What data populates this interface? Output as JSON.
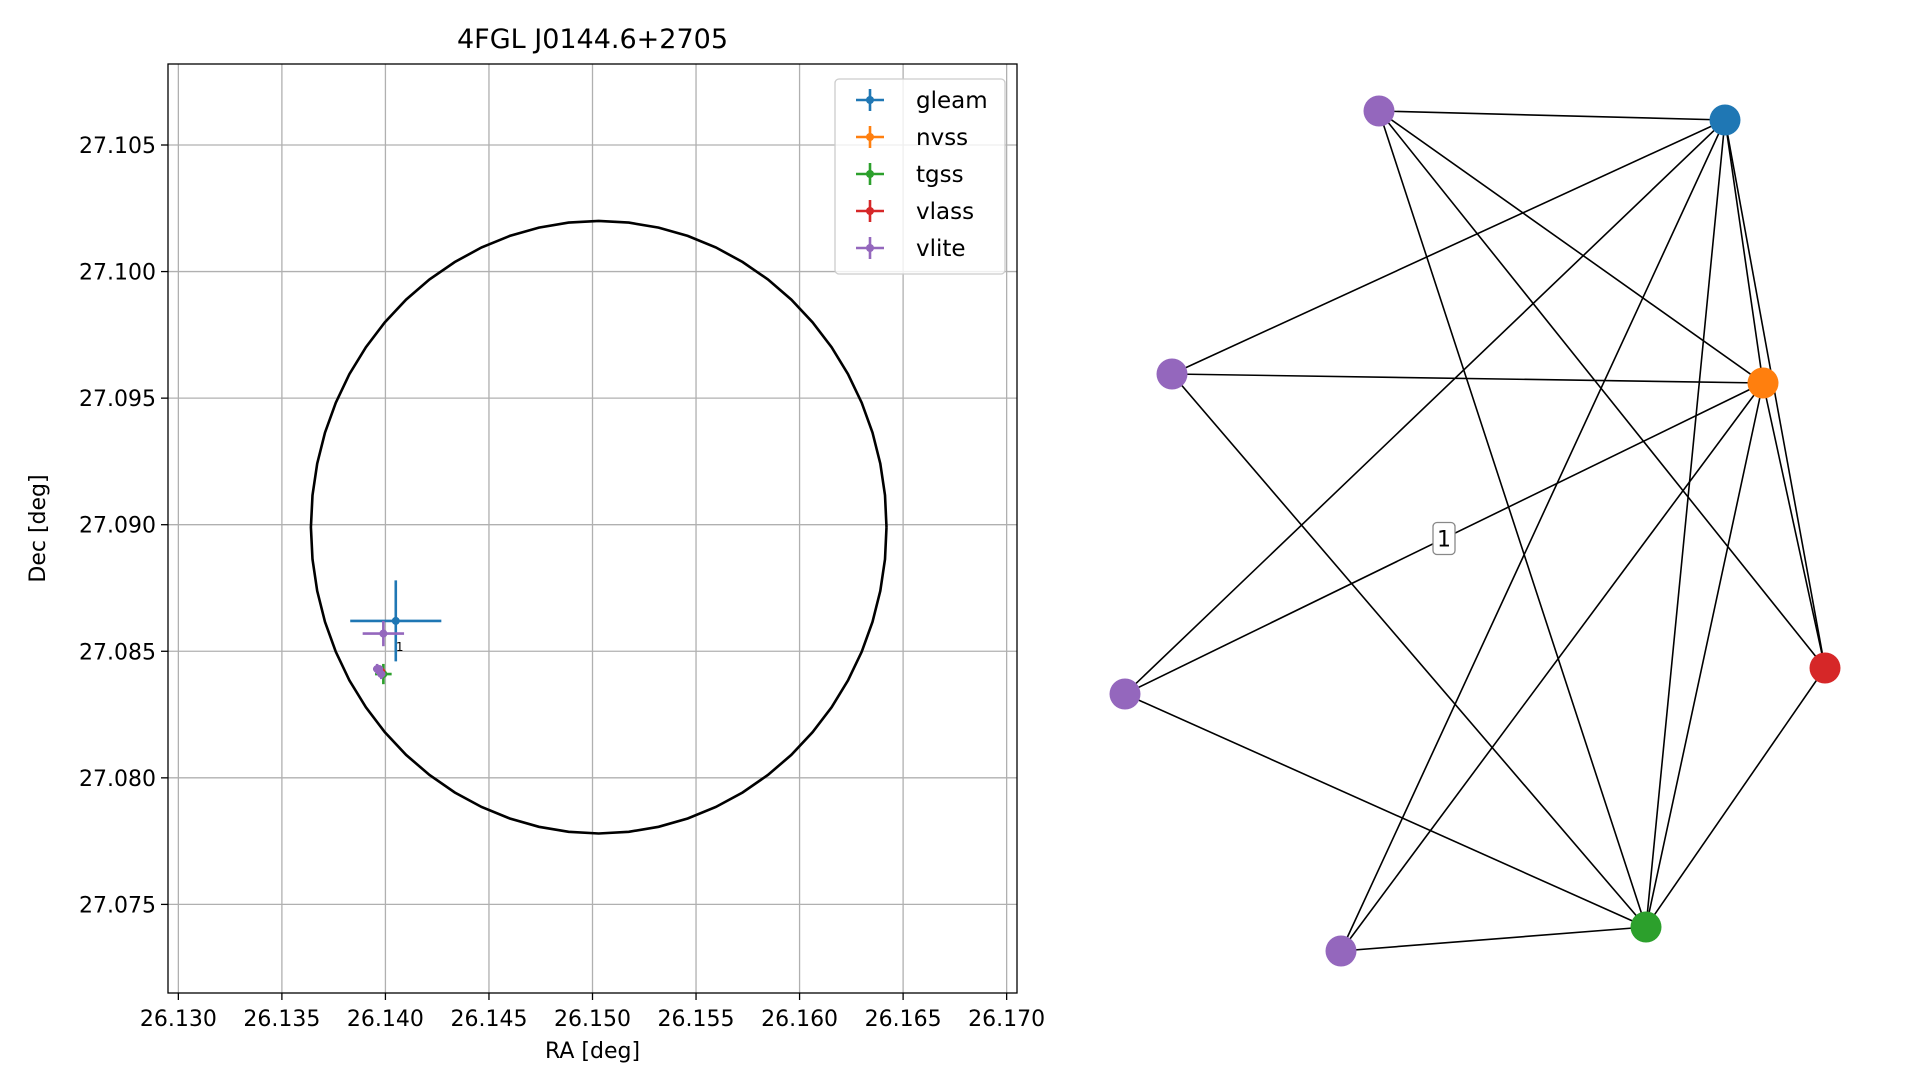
{
  "chart_data": [
    {
      "type": "scatter",
      "title": "4FGL J0144.6+2705",
      "xlabel": "RA [deg]",
      "ylabel": "Dec [deg]",
      "xlim": [
        26.1295,
        26.1705
      ],
      "ylim": [
        27.0715,
        27.1082
      ],
      "xticks": [
        "26.130",
        "26.135",
        "26.140",
        "26.145",
        "26.150",
        "26.155",
        "26.160",
        "26.165",
        "26.170"
      ],
      "yticks": [
        "27.075",
        "27.080",
        "27.085",
        "27.090",
        "27.095",
        "27.100",
        "27.105"
      ],
      "grid": true,
      "legend_position": "top-right",
      "ellipse": {
        "center": [
          26.1503,
          27.0899
        ],
        "semi_axes": [
          0.0139,
          0.0121
        ],
        "color": "#000000"
      },
      "series": [
        {
          "name": "gleam",
          "color": "#1f77b4",
          "points": [
            {
              "x": 26.1405,
              "y": 27.0862,
              "xerr": 0.0022,
              "yerr": 0.0016
            }
          ]
        },
        {
          "name": "nvss",
          "color": "#ff7f0e",
          "points": [
            {
              "x": 26.1398,
              "y": 27.0842,
              "xerr": 0.0002,
              "yerr": 0.0001
            }
          ]
        },
        {
          "name": "tgss",
          "color": "#2ca02c",
          "points": [
            {
              "x": 26.1399,
              "y": 27.0841,
              "xerr": 0.0004,
              "yerr": 0.0004
            }
          ]
        },
        {
          "name": "vlass",
          "color": "#d62728",
          "points": [
            {
              "x": 26.1398,
              "y": 27.0842,
              "xerr": 0.0001,
              "yerr": 0.0001
            }
          ]
        },
        {
          "name": "vlite",
          "color": "#9467bd",
          "points": [
            {
              "x": 26.1399,
              "y": 27.0857,
              "xerr": 0.001,
              "yerr": 0.0005
            },
            {
              "x": 26.1396,
              "y": 27.0843,
              "xerr": 0.0002,
              "yerr": 0.0002
            },
            {
              "x": 26.1398,
              "y": 27.0841,
              "xerr": 0.0002,
              "yerr": 0.0002
            },
            {
              "x": 26.1397,
              "y": 27.0843,
              "xerr": 0.0001,
              "yerr": 0.0001
            }
          ]
        }
      ],
      "annotations": [
        {
          "text": "1",
          "x": 26.1407,
          "y": 27.0852
        }
      ]
    },
    {
      "type": "graph",
      "nodes": [
        {
          "id": "n0",
          "color": "#1f77b4"
        },
        {
          "id": "n1",
          "color": "#ff7f0e"
        },
        {
          "id": "n2",
          "color": "#d62728"
        },
        {
          "id": "n3",
          "color": "#2ca02c"
        },
        {
          "id": "n4",
          "color": "#9467bd"
        },
        {
          "id": "n5",
          "color": "#9467bd"
        },
        {
          "id": "n6",
          "color": "#9467bd"
        },
        {
          "id": "n7",
          "color": "#9467bd"
        }
      ],
      "edges": [
        [
          "n7",
          "n0"
        ],
        [
          "n7",
          "n1"
        ],
        [
          "n7",
          "n2"
        ],
        [
          "n7",
          "n3"
        ],
        [
          "n6",
          "n0"
        ],
        [
          "n6",
          "n1"
        ],
        [
          "n6",
          "n3"
        ],
        [
          "n5",
          "n0"
        ],
        [
          "n5",
          "n1"
        ],
        [
          "n5",
          "n3"
        ],
        [
          "n4",
          "n0"
        ],
        [
          "n4",
          "n1"
        ],
        [
          "n4",
          "n3"
        ],
        [
          "n0",
          "n1"
        ],
        [
          "n0",
          "n2"
        ],
        [
          "n0",
          "n3"
        ],
        [
          "n1",
          "n2"
        ],
        [
          "n1",
          "n3"
        ],
        [
          "n2",
          "n3"
        ]
      ],
      "edge_labels": [
        {
          "text": "1",
          "source": "n5",
          "target": "n1"
        }
      ]
    }
  ]
}
